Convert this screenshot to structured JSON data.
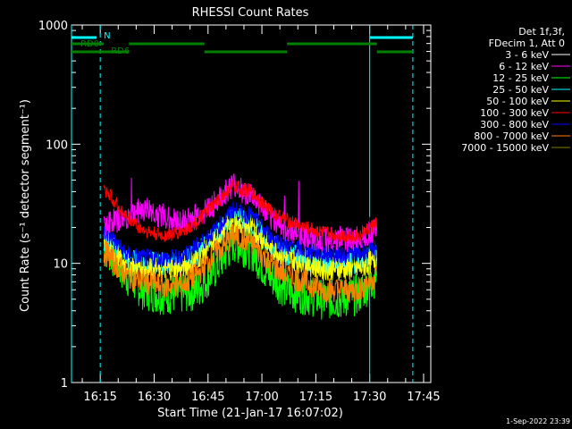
{
  "chart_data": {
    "type": "line",
    "title": "RHESSI Count Rates",
    "xlabel": "Start Time (21-Jan-17 16:07:02)",
    "ylabel": "Count Rate (s⁻¹ detector segment⁻¹)",
    "y_scale": "log",
    "ylim": [
      1,
      1000
    ],
    "xlim": [
      "16:07",
      "17:47"
    ],
    "x_ticks": [
      "16:15",
      "16:30",
      "16:45",
      "17:00",
      "17:15",
      "17:30",
      "17:45"
    ],
    "y_ticks": [
      "1",
      "10",
      "100",
      "1000"
    ],
    "legend_header": [
      "Det 1f,3f,",
      "FDecim 1, Att 0"
    ],
    "legend_position": "right",
    "footer_date": "1-Sep-2022 23:39",
    "x_time_points": [
      "16:17",
      "16:22",
      "16:27",
      "16:32",
      "16:37",
      "16:42",
      "16:47",
      "16:52",
      "16:57",
      "17:02",
      "17:07",
      "17:12",
      "17:17",
      "17:22",
      "17:27",
      "17:32"
    ],
    "series": [
      {
        "name": "3 - 6 keV",
        "color": "#000000",
        "values": [
          25,
          22,
          23,
          24,
          21,
          24,
          30,
          40,
          38,
          30,
          24,
          22,
          21,
          20,
          20,
          22
        ]
      },
      {
        "name": "6 - 12 keV",
        "color": "#ff00ff",
        "values": [
          22,
          24,
          29,
          25,
          22,
          25,
          32,
          45,
          37,
          25,
          19,
          17,
          16,
          16,
          16,
          20
        ]
      },
      {
        "name": "12 - 25 keV",
        "color": "#00ff00",
        "values": [
          13,
          8,
          6,
          5.5,
          5.5,
          6,
          9,
          15,
          13,
          8,
          6,
          5.5,
          5,
          5,
          5.5,
          8
        ]
      },
      {
        "name": "25 - 50 keV",
        "color": "#00ffff",
        "values": [
          15,
          11,
          10,
          10,
          10,
          12,
          17,
          25,
          22,
          15,
          12,
          11,
          10,
          10,
          10,
          12
        ]
      },
      {
        "name": "50 - 100 keV",
        "color": "#ffff00",
        "values": [
          14,
          10,
          9,
          9,
          9,
          11,
          16,
          23,
          20,
          14,
          11,
          10,
          9,
          9,
          9,
          11
        ]
      },
      {
        "name": "100 - 300 keV",
        "color": "#ff0000",
        "values": [
          40,
          25,
          19,
          17,
          18,
          22,
          32,
          44,
          40,
          28,
          23,
          20,
          18,
          17,
          17,
          22
        ]
      },
      {
        "name": "300 - 800 keV",
        "color": "#0000ff",
        "values": [
          18,
          12,
          11,
          11,
          11,
          14,
          19,
          28,
          25,
          17,
          14,
          13,
          12,
          12,
          12,
          14
        ]
      },
      {
        "name": "800 - 7000 keV",
        "color": "#ff8000",
        "values": [
          12,
          8,
          7,
          6.5,
          6.5,
          8,
          12,
          17,
          15,
          10,
          8,
          7,
          6,
          6,
          6,
          8
        ]
      },
      {
        "name": "7000 - 15000 keV",
        "color": "#808000",
        "values": []
      }
    ],
    "attenuator_bars": [
      {
        "label": "N",
        "color": "#00ffff",
        "segments": [
          [
            "16:07",
            "16:14"
          ],
          [
            "17:30",
            "17:42"
          ]
        ]
      },
      {
        "label": "RD0",
        "color": "#008000",
        "segments": [
          [
            "16:07",
            "16:16"
          ],
          [
            "16:23",
            "16:44"
          ],
          [
            "17:07",
            "17:32"
          ]
        ]
      },
      {
        "label": "RD6",
        "color": "#008000",
        "segments": [
          [
            "16:07",
            "16:23"
          ],
          [
            "16:44",
            "17:07"
          ],
          [
            "17:32",
            "17:42"
          ]
        ]
      }
    ],
    "vertical_markers": [
      {
        "time": "16:07",
        "style": "solid",
        "color": "#00ffff"
      },
      {
        "time": "16:15",
        "style": "dashed",
        "color": "#00ffff"
      },
      {
        "time": "17:30",
        "style": "solid",
        "color": "#00ffff"
      },
      {
        "time": "17:42",
        "style": "dashed",
        "color": "#00ffff"
      }
    ]
  }
}
